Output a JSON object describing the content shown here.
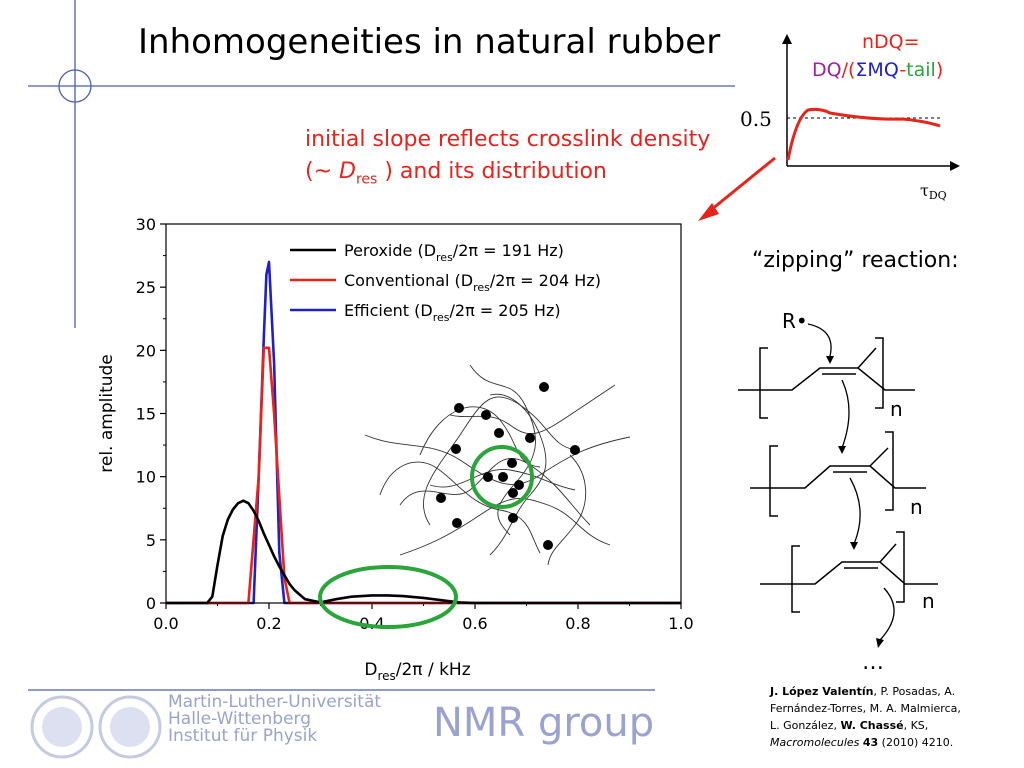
{
  "slide": {
    "title": "Inhomogeneities in natural rubber",
    "annotation_line1": "initial slope reflects crosslink density",
    "annotation_line2_prefix": "(~ ",
    "annotation_D": "D",
    "annotation_sub": "res",
    "annotation_line2_suffix": " ) and its distribution",
    "zipping_label": "“zipping” reaction:",
    "radical_label": "R•",
    "repeat_n": "n",
    "ellipsis": "…",
    "footer_university": [
      "Martin-Luther-Universität",
      "Halle-Wittenberg",
      "Institut für Physik"
    ],
    "footer_group": "NMR group",
    "reference": {
      "author1": "J. López Valentín",
      "authors_mid1": ", P. Posadas, A.",
      "line2": "Fernández-Torres, M. A. Malmierca,",
      "authors_pre": "L. González, ",
      "author2": "W. Chassé",
      "authors_post": ", KS,",
      "journal": "Macromolecules",
      "volume": "43",
      "rest": " (2010) 4210."
    },
    "inset": {
      "title_line1": "nDQ=",
      "title_dq": "DQ",
      "title_slash": "/(",
      "title_sigma": "ΣMQ",
      "title_dash": "-",
      "title_tail": "tail",
      "title_close": ")",
      "y_mark": "0.5",
      "x_label": "τ",
      "x_sub": "DQ",
      "colors": {
        "nDQ": "#e8231b",
        "DQ": "#a0229e",
        "MQ": "#2020c8",
        "tail": "#2aa53a"
      }
    }
  },
  "chart_data": {
    "type": "line",
    "xlabel": "D",
    "xlabel_sub": "res",
    "xlabel_rest": "/2π   / kHz",
    "ylabel": "rel. amplitude",
    "xlim": [
      0.0,
      1.0
    ],
    "ylim": [
      0,
      30
    ],
    "xticks": [
      "0.0",
      "0.2",
      "0.4",
      "0.6",
      "0.8",
      "1.0"
    ],
    "yticks": [
      "0",
      "5",
      "10",
      "15",
      "20",
      "25",
      "30"
    ],
    "grid": false,
    "legend_position": "top-right",
    "series": [
      {
        "name_pre": "Peroxide (D",
        "name_sub": "res",
        "name_post": "/2π = 191 Hz)",
        "color": "#000000",
        "x": [
          0.0,
          0.08,
          0.09,
          0.1,
          0.11,
          0.12,
          0.13,
          0.14,
          0.15,
          0.16,
          0.17,
          0.18,
          0.19,
          0.2,
          0.21,
          0.22,
          0.23,
          0.24,
          0.25,
          0.27,
          0.3,
          0.33,
          0.36,
          0.4,
          0.43,
          0.46,
          0.5,
          0.54,
          0.57,
          0.6,
          1.0
        ],
        "y": [
          0,
          0,
          0.5,
          3.0,
          5.3,
          6.6,
          7.4,
          7.9,
          8.1,
          7.9,
          7.3,
          6.5,
          5.5,
          4.6,
          3.7,
          2.9,
          2.2,
          1.5,
          1.0,
          0.3,
          0.05,
          0.3,
          0.5,
          0.6,
          0.6,
          0.55,
          0.4,
          0.2,
          0.05,
          0,
          0
        ]
      },
      {
        "name_pre": "Conventional (D",
        "name_sub": "res",
        "name_post": "/2π = 204 Hz)",
        "color": "#e8231b",
        "x": [
          0.0,
          0.16,
          0.18,
          0.19,
          0.2,
          0.21,
          0.23,
          0.24,
          1.0
        ],
        "y": [
          0,
          0,
          10.0,
          20.2,
          20.2,
          15.0,
          2.0,
          0,
          0
        ]
      },
      {
        "name_pre": "Efficient (D",
        "name_sub": "res",
        "name_post": "/2π = 205 Hz)",
        "color": "#2020c8",
        "x": [
          0.0,
          0.17,
          0.18,
          0.19,
          0.195,
          0.2,
          0.21,
          0.22,
          0.23,
          1.0
        ],
        "y": [
          0,
          0,
          10.0,
          21.0,
          26.0,
          27.0,
          19.0,
          4.0,
          0,
          0
        ]
      }
    ]
  }
}
